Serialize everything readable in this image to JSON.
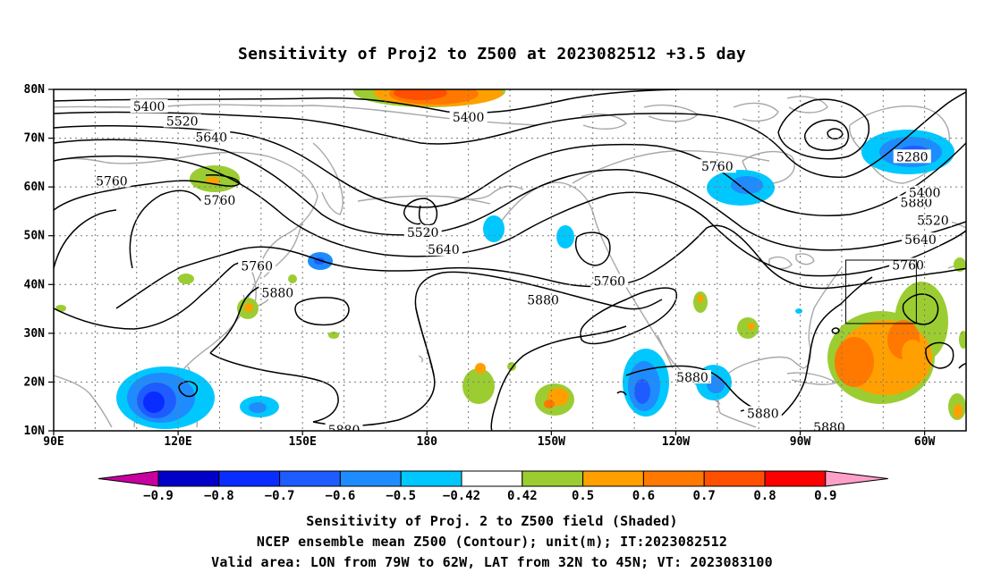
{
  "title": "Sensitivity of Proj2 to Z500 at 2023082512 +3.5 day",
  "map": {
    "lat_labels": [
      "80N",
      "70N",
      "60N",
      "50N",
      "40N",
      "30N",
      "20N",
      "10N"
    ],
    "lon_labels": [
      "90E",
      "120E",
      "150E",
      "180",
      "150W",
      "120W",
      "90W",
      "60W"
    ],
    "extent": {
      "lon_west": 90,
      "lon_east": 310,
      "lat_south": 10,
      "lat_north": 80
    },
    "contour_labels": [
      {
        "text": "5400",
        "lon": 113,
        "lat": 76.5
      },
      {
        "text": "5520",
        "lon": 121,
        "lat": 73.5
      },
      {
        "text": "5640",
        "lon": 128,
        "lat": 70.2
      },
      {
        "text": "5760",
        "lon": 104,
        "lat": 61.2
      },
      {
        "text": "5760",
        "lon": 130,
        "lat": 57.3
      },
      {
        "text": "5760",
        "lon": 139,
        "lat": 43.8
      },
      {
        "text": "5880",
        "lon": 144,
        "lat": 38.3
      },
      {
        "text": "5400",
        "lon": 190,
        "lat": 74.3
      },
      {
        "text": "5520",
        "lon": 179,
        "lat": 50.7
      },
      {
        "text": "5640",
        "lon": 184,
        "lat": 47.2
      },
      {
        "text": "5760",
        "lon": 250,
        "lat": 64.2
      },
      {
        "text": "5760",
        "lon": 224,
        "lat": 40.7
      },
      {
        "text": "5880",
        "lon": 208,
        "lat": 36.8
      },
      {
        "text": "5880",
        "lon": 244,
        "lat": 21.0
      },
      {
        "text": "5880",
        "lon": 298,
        "lat": 56.8
      },
      {
        "text": "5400",
        "lon": 300,
        "lat": 58.8
      },
      {
        "text": "5520",
        "lon": 302,
        "lat": 53.2
      },
      {
        "text": "5640",
        "lon": 299,
        "lat": 49.2
      },
      {
        "text": "5760",
        "lon": 296,
        "lat": 44.0
      },
      {
        "text": "5280",
        "lon": 297,
        "lat": 66.2
      },
      {
        "text": "5880",
        "lon": 261,
        "lat": 13.6
      },
      {
        "text": "5880",
        "lon": 277,
        "lat": 10.7
      },
      {
        "text": "5880",
        "lon": 160,
        "lat": 10.2
      }
    ],
    "valid_box": {
      "lon_west": 281,
      "lon_east": 298,
      "lat_south": 32,
      "lat_north": 45
    }
  },
  "colorbar": {
    "labels": [
      "-0.9",
      "-0.8",
      "-0.7",
      "-0.6",
      "-0.5",
      "-0.42",
      "0.42",
      "0.5",
      "0.6",
      "0.7",
      "0.8",
      "0.9"
    ],
    "colors": [
      "#0000c8",
      "#0a2dff",
      "#1e5cff",
      "#1e8cff",
      "#00c8ff",
      "#ffffff",
      "#9bcd32",
      "#ffa000",
      "#ff7800",
      "#ff5000",
      "#ff0000"
    ],
    "low_end_color": "#c800a0",
    "high_end_color": "#ffa0c8"
  },
  "captions": {
    "line1": "Sensitivity of Proj. 2 to Z500 field (Shaded)",
    "line2": "NCEP ensemble mean Z500 (Contour); unit(m); IT:2023082512",
    "line3": "Valid area: LON from 79W to 62W, LAT from 32N to 45N; VT: 2023083100"
  }
}
